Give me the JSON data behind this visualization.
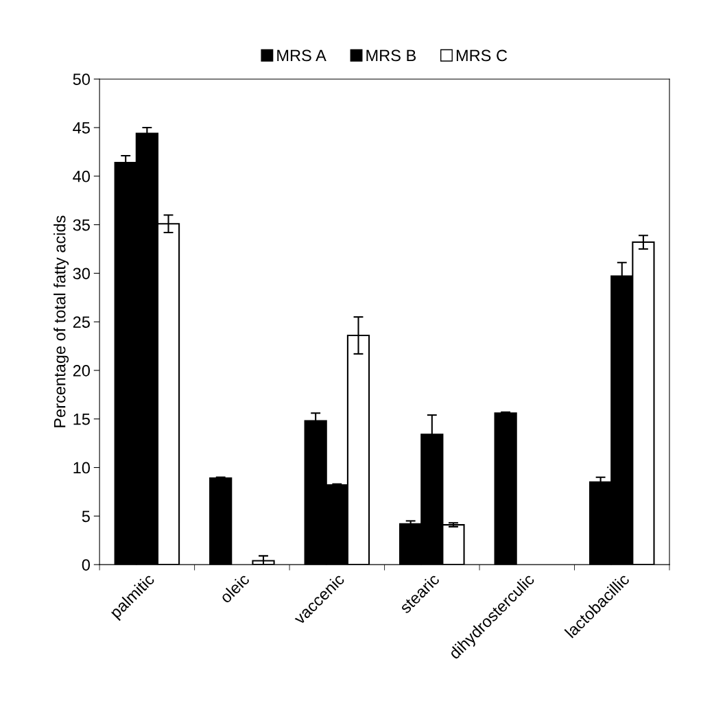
{
  "chart_data": {
    "type": "bar",
    "ylabel": "Percentage of total fatty acids",
    "categories": [
      "palmitic",
      "oleic",
      "vaccenic",
      "stearic",
      "dihydrosterculic",
      "lactobacillic"
    ],
    "series": [
      {
        "name": "MRS A",
        "color": "#000000",
        "values": [
          41.4,
          8.9,
          14.8,
          4.2,
          15.6,
          8.5
        ],
        "errors": [
          0.7,
          0.1,
          0.8,
          0.3,
          0.1,
          0.5
        ]
      },
      {
        "name": "MRS B",
        "color": "#000000",
        "values": [
          44.4,
          null,
          8.2,
          13.4,
          null,
          29.7
        ],
        "errors": [
          0.6,
          null,
          0.1,
          2.0,
          null,
          1.4
        ]
      },
      {
        "name": "MRS C",
        "color": "#ffffff",
        "values": [
          35.1,
          0.4,
          23.6,
          4.1,
          null,
          33.2
        ],
        "errors": [
          0.9,
          0.5,
          1.9,
          0.2,
          null,
          0.7
        ]
      }
    ],
    "ylim": [
      0,
      50
    ],
    "yticks": [
      0,
      5,
      10,
      15,
      20,
      25,
      30,
      35,
      40,
      45,
      50
    ],
    "grid": false,
    "legend": "top"
  }
}
